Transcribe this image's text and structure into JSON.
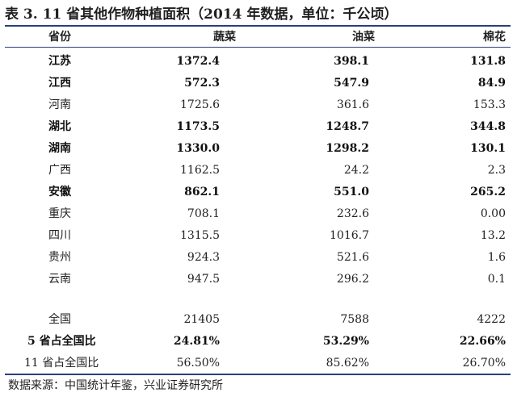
{
  "title": "表 3.  11 省其他作物种植面积（2014 年数据，单位：千公顷）",
  "headers": [
    "省份",
    "蔬菜",
    "油菜",
    "棉花"
  ],
  "rows": [
    {
      "province": "江苏",
      "veg": "1372.4",
      "rape": "398.1",
      "cotton": "131.8",
      "bold": true
    },
    {
      "province": "江西",
      "veg": "572.3",
      "rape": "547.9",
      "cotton": "84.9",
      "bold": true
    },
    {
      "province": "河南",
      "veg": "1725.6",
      "rape": "361.6",
      "cotton": "153.3",
      "bold": false
    },
    {
      "province": "湖北",
      "veg": "1173.5",
      "rape": "1248.7",
      "cotton": "344.8",
      "bold": true
    },
    {
      "province": "湖南",
      "veg": "1330.0",
      "rape": "1298.2",
      "cotton": "130.1",
      "bold": true
    },
    {
      "province": "广西",
      "veg": "1162.5",
      "rape": "24.2",
      "cotton": "2.3",
      "bold": false
    },
    {
      "province": "安徽",
      "veg": "862.1",
      "rape": "551.0",
      "cotton": "265.2",
      "bold": true
    },
    {
      "province": "重庆",
      "veg": "708.1",
      "rape": "232.6",
      "cotton": "0.00",
      "bold": false
    },
    {
      "province": "四川",
      "veg": "1315.5",
      "rape": "1016.7",
      "cotton": "13.2",
      "bold": false
    },
    {
      "province": "贵州",
      "veg": "924.3",
      "rape": "521.6",
      "cotton": "1.6",
      "bold": false
    },
    {
      "province": "云南",
      "veg": "947.5",
      "rape": "296.2",
      "cotton": "0.1",
      "bold": false
    }
  ],
  "summary": [
    {
      "label": "全国",
      "veg": "21405",
      "rape": "7588",
      "cotton": "4222"
    },
    {
      "label": "5 省占全国比",
      "veg": "24.81%",
      "rape": "53.29%",
      "cotton": "22.66%"
    },
    {
      "label": "11 省占全国比",
      "veg": "56.50%",
      "rape": "85.62%",
      "cotton": "26.70%"
    }
  ],
  "source": "数据来源：中国统计年鉴，兴业证券研究所"
}
